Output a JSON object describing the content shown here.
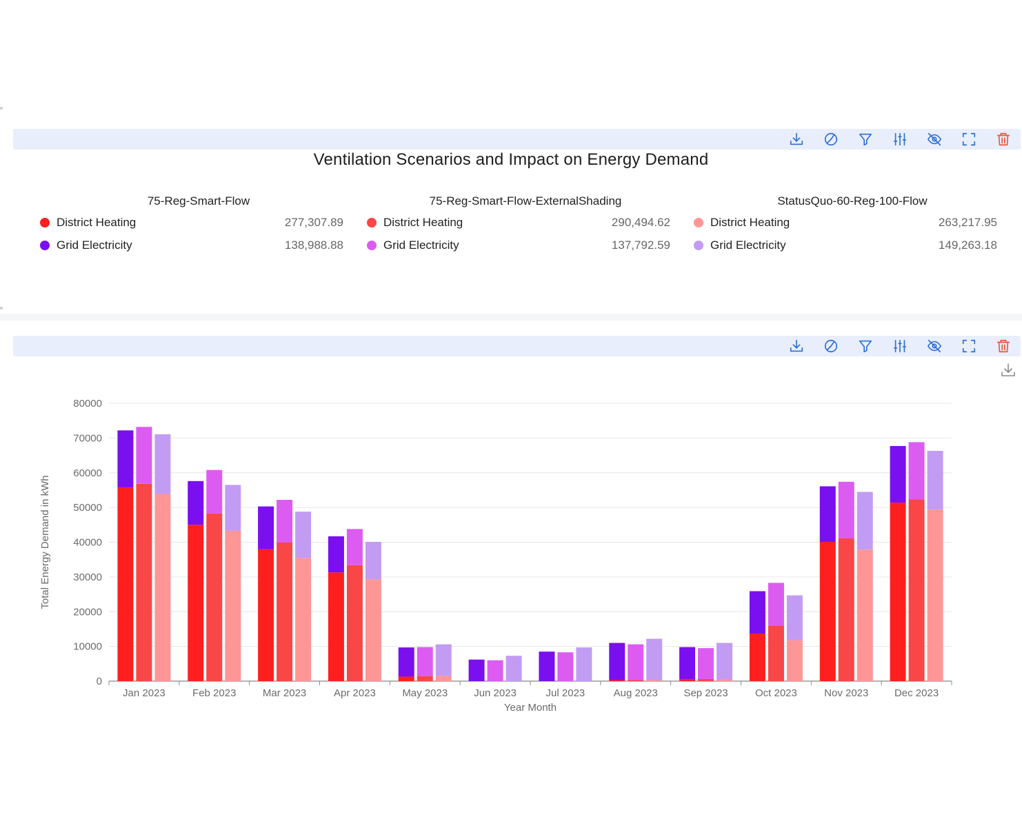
{
  "toolbar_icons": [
    "download-icon",
    "pie-chart-icon",
    "filter-icon",
    "sliders-icon",
    "eye-off-icon",
    "fullscreen-icon",
    "trash-icon"
  ],
  "summary": {
    "title": "Ventilation Scenarios and Impact on Energy Demand",
    "groups": [
      {
        "name": "75-Reg-Smart-Flow",
        "items": [
          {
            "label": "District Heating",
            "value": "277,307.89",
            "color": "#ff1f1f"
          },
          {
            "label": "Grid Electricity",
            "value": "138,988.88",
            "color": "#7a0ff0"
          }
        ]
      },
      {
        "name": "75-Reg-Smart-Flow-ExternalShading",
        "items": [
          {
            "label": "District Heating",
            "value": "290,494.62",
            "color": "#f94646"
          },
          {
            "label": "Grid Electricity",
            "value": "137,792.59",
            "color": "#dc5cf2"
          }
        ]
      },
      {
        "name": "StatusQuo-60-Reg-100-Flow",
        "items": [
          {
            "label": "District Heating",
            "value": "263,217.95",
            "color": "#ff9696"
          },
          {
            "label": "Grid Electricity",
            "value": "149,263.18",
            "color": "#c29cf3"
          }
        ]
      }
    ]
  },
  "chart_data": {
    "type": "bar",
    "stacked": true,
    "grouped_by": "scenario",
    "xlabel": "Year Month",
    "ylabel": "Total Energy Demand in kWh",
    "ylim": [
      0,
      80000
    ],
    "yticks": [
      0,
      10000,
      20000,
      30000,
      40000,
      50000,
      60000,
      70000,
      80000
    ],
    "categories": [
      "Jan 2023",
      "Feb 2023",
      "Mar 2023",
      "Apr 2023",
      "May 2023",
      "Jun 2023",
      "Jul 2023",
      "Aug 2023",
      "Sep 2023",
      "Oct 2023",
      "Nov 2023",
      "Dec 2023"
    ],
    "groups": [
      {
        "name": "75-Reg-Smart-Flow",
        "series": [
          {
            "name": "District Heating",
            "color": "#ff1f1f",
            "values": [
              55800,
              45000,
              38000,
              31300,
              1300,
              0,
              0,
              300,
              600,
              13700,
              40100,
              51400
            ]
          },
          {
            "name": "Grid Electricity",
            "color": "#7a0ff0",
            "values": [
              16400,
              12600,
              12300,
              10400,
              8400,
              6200,
              8500,
              10700,
              9200,
              12200,
              16000,
              16300
            ]
          }
        ]
      },
      {
        "name": "75-Reg-Smart-Flow-ExternalShading",
        "series": [
          {
            "name": "District Heating",
            "color": "#f94646",
            "values": [
              56800,
              48300,
              39900,
              33400,
              1400,
              0,
              0,
              300,
              600,
              16000,
              41100,
              52300
            ]
          },
          {
            "name": "Grid Electricity",
            "color": "#dc5cf2",
            "values": [
              16400,
              12500,
              12300,
              10400,
              8400,
              6000,
              8300,
              10300,
              8900,
              12300,
              16300,
              16500
            ]
          }
        ]
      },
      {
        "name": "StatusQuo-60-Reg-100-Flow",
        "series": [
          {
            "name": "District Heating",
            "color": "#ff9696",
            "values": [
              53900,
              43300,
              35500,
              29300,
              1500,
              0,
              0,
              300,
              500,
              11800,
              37900,
              49400
            ]
          },
          {
            "name": "Grid Electricity",
            "color": "#c29cf3",
            "values": [
              17200,
              13200,
              13300,
              10800,
              9100,
              7300,
              9700,
              11900,
              10500,
              12900,
              16600,
              16900
            ]
          }
        ]
      }
    ]
  }
}
